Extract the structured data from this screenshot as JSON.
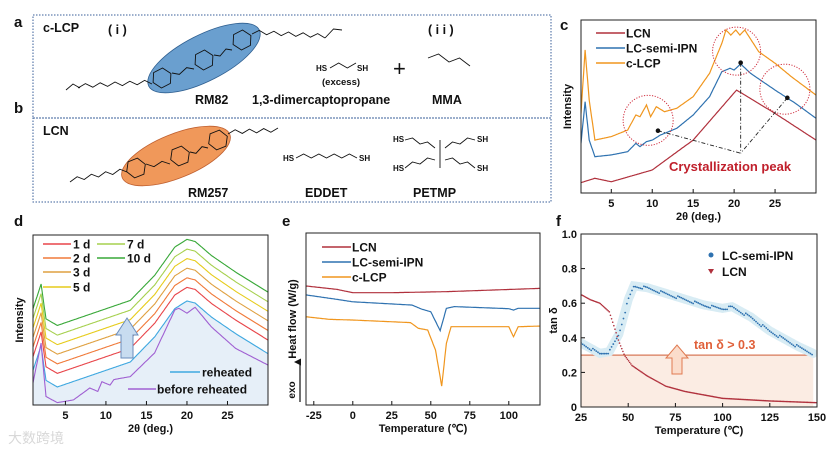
{
  "panels": {
    "a": "a",
    "b": "b",
    "c": "c",
    "d": "d",
    "e": "e",
    "f": "f"
  },
  "panel_a": {
    "title": "c-LCP",
    "part_i": "( i )",
    "part_ii": "( i i )",
    "compounds": [
      "RM82",
      "1,3-dimercaptopropane",
      "MMA"
    ],
    "hs": "HS",
    "sh": "SH",
    "excess": "(excess)",
    "plus": "+"
  },
  "panel_b": {
    "title": "LCN",
    "compounds": [
      "RM257",
      "EDDET",
      "PETMP"
    ],
    "hs": "HS",
    "sh": "SH"
  },
  "colors": {
    "lcn": "#b0303c",
    "ipn": "#2f72b0",
    "clcp": "#f0961e",
    "c_accent": "#c0202c",
    "ellipse_blue": "#6a9fcf",
    "ellipse_orange": "#f0985a",
    "box": "#3a5f9a"
  },
  "watermark": "大数跨境",
  "chart_data": [
    {
      "id": "c",
      "type": "line",
      "xlabel": "2θ (deg.)",
      "ylabel": "Intensity",
      "xlim": [
        1.3,
        30
      ],
      "ylim": [
        0,
        100
      ],
      "xticks": [
        5,
        10,
        15,
        20,
        25
      ],
      "xtick_labels": [
        "5",
        "10",
        "15",
        "20",
        "25"
      ],
      "legend": "top-left",
      "annotation": "Crystallization peak",
      "series": [
        {
          "name": "LCN",
          "color": "#b0303c",
          "x": [
            1.3,
            3,
            5,
            10,
            15,
            20.3,
            25,
            30
          ],
          "y": [
            6,
            8.5,
            6.5,
            13.3,
            30.6,
            59.5,
            46,
            30.6
          ]
        },
        {
          "name": "LC-semi-IPN",
          "color": "#2f72b0",
          "x": [
            1.3,
            1.8,
            2.3,
            3,
            5,
            7,
            8,
            8.5,
            9.3,
            10,
            11,
            13,
            15,
            17,
            18.5,
            19.5,
            20,
            20.8,
            22,
            25,
            27.5,
            30
          ],
          "y": [
            28.7,
            52.8,
            30.6,
            21,
            22,
            23.9,
            28.7,
            26.8,
            29.7,
            30.6,
            33.5,
            37.4,
            45.1,
            55.7,
            70.1,
            72.1,
            71.1,
            74.6,
            69.2,
            59.5,
            51.8,
            43.2
          ]
        },
        {
          "name": "c-LCP",
          "color": "#f0961e",
          "x": [
            1.3,
            1.8,
            2.3,
            3,
            5,
            7,
            8,
            8.5,
            9.3,
            9.8,
            10.5,
            11.5,
            13,
            15,
            17,
            18.5,
            19,
            19.6,
            20.2,
            20.7,
            21.3,
            23,
            25,
            27,
            30
          ],
          "y": [
            46,
            82.7,
            53.8,
            30.6,
            32.6,
            36.4,
            45.1,
            44.1,
            50.9,
            44.1,
            49.9,
            47,
            49,
            55.7,
            69.2,
            86.5,
            94.2,
            91.3,
            94.2,
            91.3,
            94.2,
            81.7,
            75,
            67.2,
            56.6
          ]
        }
      ],
      "peak_markers": {
        "x": [
          10.7,
          20.8,
          26.5
        ],
        "y": [
          36,
          75.3,
          55
        ]
      },
      "peak_circles": {
        "x": [
          9.5,
          20.3,
          26.2
        ],
        "y": [
          42,
          82,
          60
        ]
      }
    },
    {
      "id": "d",
      "type": "line",
      "xlabel": "2θ (deg.)",
      "ylabel": "Intensity",
      "xlim": [
        1,
        30
      ],
      "ylim": [
        0,
        100
      ],
      "xticks": [
        5,
        10,
        15,
        20,
        25
      ],
      "xtick_labels": [
        "5",
        "10",
        "15",
        "20",
        "25"
      ],
      "legend": "top-left",
      "profile": {
        "x": [
          1,
          2,
          2.6,
          4,
          7,
          10,
          13,
          16,
          18.5,
          20,
          21,
          23,
          26,
          30
        ],
        "y": [
          28.4,
          43,
          22.5,
          18.6,
          23.5,
          28.4,
          33.3,
          48,
          64.7,
          69.2,
          68,
          59.8,
          50,
          38.2
        ]
      },
      "series": [
        {
          "name": "1 d",
          "color": "#e8454a",
          "offset": 0
        },
        {
          "name": "2 d",
          "color": "#f07a3a",
          "offset": 5.6
        },
        {
          "name": "3 d",
          "color": "#dfa040",
          "offset": 11.3
        },
        {
          "name": "5 d",
          "color": "#e6cc1c",
          "offset": 16.9
        },
        {
          "name": "7 d",
          "color": "#a6d04e",
          "offset": 22.5
        },
        {
          "name": "10 d",
          "color": "#38a838",
          "offset": 28.2
        },
        {
          "name": "reheated",
          "color": "#3fa8e0",
          "offset": -8
        },
        {
          "name": "before reheated",
          "color": "#a060d2",
          "x": [
            1,
            2,
            2.6,
            4,
            6,
            8,
            9,
            9.5,
            10.5,
            11,
            13,
            16,
            18.5,
            19,
            20,
            21,
            23,
            26,
            30
          ],
          "y": [
            13,
            36.5,
            5,
            1.4,
            3,
            10,
            8,
            13.7,
            11.7,
            15,
            16.7,
            30.6,
            55.9,
            56.9,
            54,
            57.5,
            46,
            33.3,
            23.5
          ]
        }
      ]
    },
    {
      "id": "e",
      "type": "line",
      "xlabel": "Temperature (℃)",
      "ylabel": "Heat flow (W/g)",
      "exo_label": "exo",
      "xlim": [
        -30,
        120
      ],
      "ylim": [
        0,
        100
      ],
      "xticks": [
        -25,
        0,
        25,
        50,
        75,
        100
      ],
      "xtick_labels": [
        "-25",
        "0",
        "25",
        "50",
        "75",
        "100"
      ],
      "legend": "top-left",
      "series": [
        {
          "name": "LCN",
          "color": "#b0303c",
          "x": [
            -30,
            -10,
            0,
            25,
            60,
            120
          ],
          "y": [
            69.2,
            67.2,
            65.3,
            65.3,
            65.9,
            67.8
          ]
        },
        {
          "name": "LC-semi-IPN",
          "color": "#2f72b0",
          "x": [
            -30,
            -10,
            0,
            38,
            44,
            50,
            56,
            60,
            65,
            100,
            103,
            106,
            120
          ],
          "y": [
            64,
            61.4,
            60,
            58.1,
            55.8,
            54.2,
            43.2,
            56.2,
            57.2,
            56,
            55.2,
            56.2,
            56.2
          ]
        },
        {
          "name": "c-LCP",
          "color": "#f0961e",
          "x": [
            -30,
            -15,
            0,
            37,
            42,
            48,
            53,
            57,
            60,
            63,
            100,
            103,
            106,
            120
          ],
          "y": [
            51.3,
            49.8,
            49.4,
            47.9,
            44.6,
            43.6,
            32,
            11,
            35.9,
            45.5,
            45.5,
            39.7,
            45.5,
            45.9
          ]
        }
      ]
    },
    {
      "id": "f",
      "type": "scatter",
      "xlabel": "Temperature (℃)",
      "ylabel": "tan δ",
      "xlim": [
        25,
        150
      ],
      "ylim": [
        0,
        1.0
      ],
      "xticks": [
        25,
        50,
        75,
        100,
        125,
        150
      ],
      "xtick_labels": [
        "25",
        "50",
        "75",
        "100",
        "125",
        "150"
      ],
      "yticks": [
        0,
        0.2,
        0.4,
        0.6,
        0.8,
        1.0
      ],
      "ytick_labels": [
        "0",
        "0.2",
        "0.4",
        "0.6",
        "0.8",
        "1.0"
      ],
      "legend": "top-right",
      "threshold": 0.3,
      "threshold_label": "tan δ > 0.3",
      "series": [
        {
          "name": "LC-semi-IPN",
          "color": "#2f72b0",
          "marker": "circle",
          "x": [
            25,
            30,
            35,
            40,
            45,
            50,
            53,
            60,
            75,
            90,
            100,
            105,
            115,
            125,
            140,
            148
          ],
          "y": [
            0.37,
            0.34,
            0.31,
            0.32,
            0.42,
            0.62,
            0.7,
            0.69,
            0.64,
            0.59,
            0.57,
            0.58,
            0.52,
            0.44,
            0.35,
            0.31
          ]
        },
        {
          "name": "LCN",
          "color": "#b0303c",
          "marker": "triangle-down",
          "x": [
            25,
            30,
            35,
            40,
            43,
            45,
            48,
            52,
            60,
            70,
            80,
            90,
            100,
            125,
            150
          ],
          "y": [
            0.65,
            0.62,
            0.6,
            0.55,
            0.45,
            0.38,
            0.3,
            0.24,
            0.18,
            0.12,
            0.09,
            0.07,
            0.05,
            0.035,
            0.025
          ]
        }
      ]
    }
  ]
}
